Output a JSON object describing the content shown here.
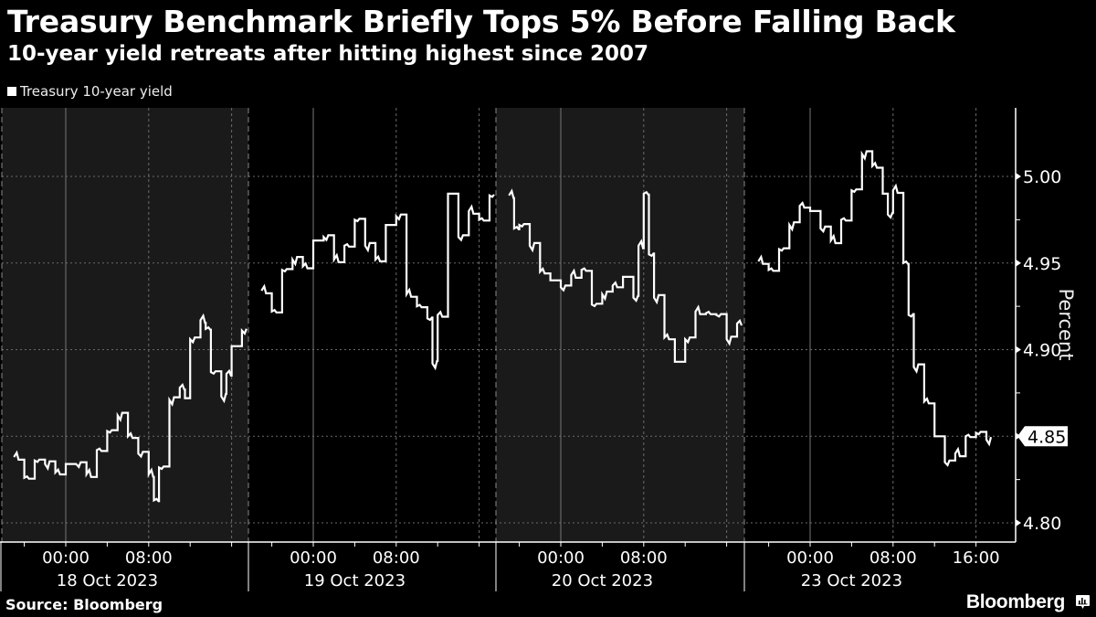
{
  "header": {
    "title": "Treasury Benchmark Briefly Tops 5% Before Falling Back",
    "subtitle": "10-year yield retreats after hitting highest since 2007"
  },
  "legend": {
    "label": "Treasury 10-year yield",
    "color": "#ffffff"
  },
  "footer": {
    "source": "Source: Bloomberg",
    "brand": "Bloomberg",
    "brand_icon": "bloomberg-chart-icon"
  },
  "colors": {
    "background": "#000000",
    "shaded_panel": "#1a1a1a",
    "line": "#ffffff",
    "grid": "#6a6a6a"
  },
  "chart_data": {
    "type": "line",
    "title": "Treasury Benchmark Briefly Tops 5% Before Falling Back",
    "subtitle": "10-year yield retreats after hitting highest since 2007",
    "xlabel": "",
    "ylabel": "Percent",
    "ylim": [
      4.79,
      5.04
    ],
    "yticks": [
      "4.80",
      "4.85",
      "4.90",
      "4.95",
      "5.00"
    ],
    "grid": true,
    "legend_position": "top-left",
    "last_value_label": "4.85",
    "days": [
      {
        "label": "18 Oct 2023",
        "ticks": [
          "00:00",
          "08:00"
        ],
        "shaded": true
      },
      {
        "label": "19 Oct 2023",
        "ticks": [
          "00:00",
          "08:00"
        ],
        "shaded": false
      },
      {
        "label": "20 Oct 2023",
        "ticks": [
          "00:00",
          "08:00"
        ],
        "shaded": true
      },
      {
        "label": "23 Oct 2023",
        "ticks": [
          "00:00",
          "08:00",
          "16:00"
        ],
        "shaded": false
      }
    ],
    "series": [
      {
        "name": "Treasury 10-year yield",
        "segments": [
          {
            "day": "18 Oct 2023",
            "x": [
              "19:00",
              "20:00",
              "21:00",
              "22:00",
              "23:00",
              "00:00",
              "01:00",
              "02:00",
              "03:00",
              "04:00",
              "05:00",
              "06:00",
              "06:30",
              "07:00",
              "08:00",
              "08:30",
              "09:00",
              "10:00",
              "11:00",
              "11:30",
              "12:00",
              "13:00",
              "13:30",
              "14:00",
              "15:00",
              "15:30",
              "16:00",
              "17:00"
            ],
            "values": [
              4.838,
              4.826,
              4.836,
              4.834,
              4.829,
              4.834,
              4.834,
              4.828,
              4.842,
              4.853,
              4.862,
              4.85,
              4.849,
              4.84,
              4.828,
              4.813,
              4.832,
              4.871,
              4.878,
              4.872,
              4.906,
              4.917,
              4.912,
              4.887,
              4.873,
              4.886,
              4.902,
              4.911
            ]
          },
          {
            "day": "19 Oct 2023",
            "x": [
              "19:00",
              "20:00",
              "21:00",
              "22:00",
              "23:00",
              "00:00",
              "01:00",
              "02:00",
              "03:00",
              "04:00",
              "05:00",
              "06:00",
              "07:00",
              "08:00",
              "09:00",
              "10:00",
              "11:00",
              "11:30",
              "12:00",
              "13:00",
              "14:00",
              "15:00",
              "16:00",
              "17:00"
            ],
            "values": [
              4.934,
              4.922,
              4.946,
              4.952,
              4.948,
              4.963,
              4.965,
              4.952,
              4.96,
              4.975,
              4.96,
              4.952,
              4.972,
              4.977,
              4.932,
              4.925,
              4.918,
              4.892,
              4.92,
              4.99,
              4.965,
              4.98,
              4.975,
              4.989
            ]
          },
          {
            "day": "20 Oct 2023",
            "x": [
              "19:00",
              "19:30",
              "20:00",
              "21:00",
              "22:00",
              "23:00",
              "00:00",
              "01:00",
              "02:00",
              "03:00",
              "04:00",
              "05:00",
              "06:00",
              "07:00",
              "07:30",
              "08:00",
              "08:30",
              "09:00",
              "10:00",
              "11:00",
              "12:00",
              "13:00",
              "14:00",
              "15:00",
              "16:00",
              "17:00"
            ],
            "values": [
              4.989,
              4.97,
              4.972,
              4.96,
              4.945,
              4.94,
              4.936,
              4.943,
              4.946,
              4.926,
              4.932,
              4.937,
              4.942,
              4.93,
              4.96,
              4.99,
              4.955,
              4.93,
              4.907,
              4.893,
              4.906,
              4.922,
              4.921,
              4.92,
              4.906,
              4.915
            ]
          },
          {
            "day": "23 Oct 2023",
            "x": [
              "19:00",
              "20:00",
              "21:00",
              "22:00",
              "23:00",
              "00:00",
              "01:00",
              "02:00",
              "03:00",
              "04:00",
              "05:00",
              "06:00",
              "07:00",
              "07:30",
              "08:00",
              "09:00",
              "09:30",
              "10:00",
              "11:00",
              "12:00",
              "13:00",
              "14:00",
              "15:00",
              "16:00",
              "17:00"
            ],
            "values": [
              4.951,
              4.946,
              4.958,
              4.972,
              4.983,
              4.98,
              4.97,
              4.963,
              4.975,
              4.992,
              5.013,
              5.006,
              4.99,
              4.978,
              4.992,
              4.95,
              4.92,
              4.89,
              4.87,
              4.85,
              4.835,
              4.84,
              4.85,
              4.852,
              4.848
            ]
          }
        ]
      }
    ]
  }
}
